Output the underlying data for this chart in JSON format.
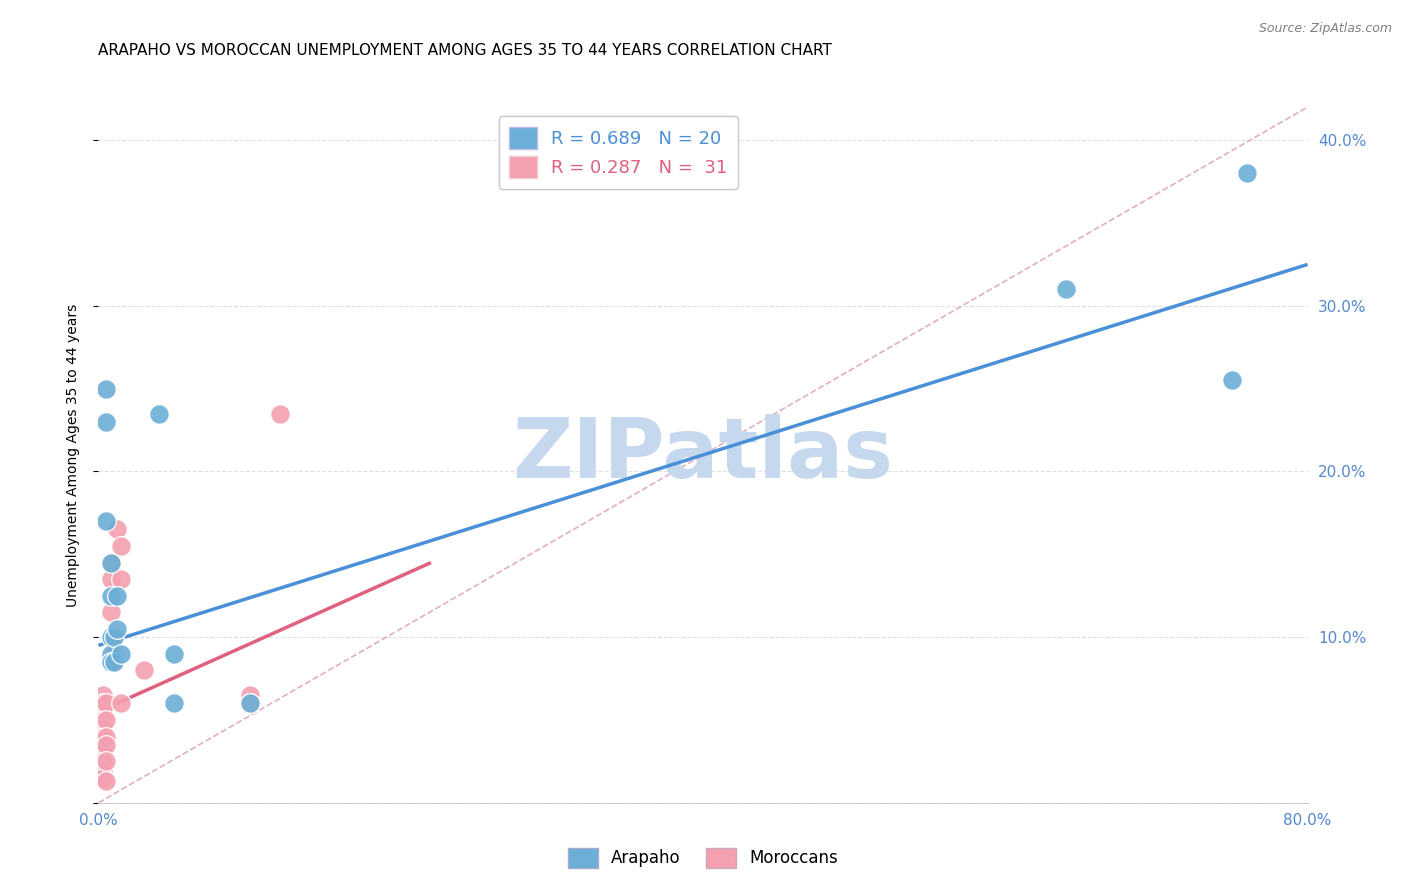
{
  "title": "ARAPAHO VS MOROCCAN UNEMPLOYMENT AMONG AGES 35 TO 44 YEARS CORRELATION CHART",
  "source": "Source: ZipAtlas.com",
  "ylabel": "Unemployment Among Ages 35 to 44 years",
  "xlim": [
    0,
    0.8
  ],
  "ylim": [
    0,
    0.42
  ],
  "watermark": "ZIPatlas",
  "arapaho_points": [
    [
      0.005,
      0.25
    ],
    [
      0.005,
      0.23
    ],
    [
      0.005,
      0.17
    ],
    [
      0.008,
      0.145
    ],
    [
      0.008,
      0.125
    ],
    [
      0.008,
      0.1
    ],
    [
      0.008,
      0.09
    ],
    [
      0.008,
      0.085
    ],
    [
      0.01,
      0.1
    ],
    [
      0.01,
      0.085
    ],
    [
      0.012,
      0.125
    ],
    [
      0.012,
      0.105
    ],
    [
      0.015,
      0.09
    ],
    [
      0.04,
      0.235
    ],
    [
      0.05,
      0.09
    ],
    [
      0.05,
      0.06
    ],
    [
      0.1,
      0.06
    ],
    [
      0.64,
      0.31
    ],
    [
      0.75,
      0.255
    ],
    [
      0.76,
      0.38
    ]
  ],
  "moroccan_points": [
    [
      0.003,
      0.065
    ],
    [
      0.003,
      0.06
    ],
    [
      0.003,
      0.055
    ],
    [
      0.003,
      0.05
    ],
    [
      0.003,
      0.045
    ],
    [
      0.003,
      0.04
    ],
    [
      0.003,
      0.035
    ],
    [
      0.003,
      0.03
    ],
    [
      0.003,
      0.025
    ],
    [
      0.003,
      0.02
    ],
    [
      0.003,
      0.015
    ],
    [
      0.005,
      0.06
    ],
    [
      0.005,
      0.05
    ],
    [
      0.005,
      0.04
    ],
    [
      0.005,
      0.035
    ],
    [
      0.005,
      0.025
    ],
    [
      0.008,
      0.145
    ],
    [
      0.008,
      0.135
    ],
    [
      0.008,
      0.115
    ],
    [
      0.01,
      0.1
    ],
    [
      0.01,
      0.09
    ],
    [
      0.01,
      0.085
    ],
    [
      0.012,
      0.165
    ],
    [
      0.015,
      0.155
    ],
    [
      0.015,
      0.06
    ],
    [
      0.03,
      0.08
    ],
    [
      0.1,
      0.065
    ],
    [
      0.1,
      0.06
    ],
    [
      0.12,
      0.235
    ],
    [
      0.015,
      0.135
    ],
    [
      0.005,
      0.013
    ]
  ],
  "arapaho_line": {
    "x": [
      0.0,
      0.8
    ],
    "y": [
      0.095,
      0.325
    ],
    "color": "#4a90d9",
    "lw": 2.5
  },
  "moroccan_line": {
    "x": [
      0.0,
      0.22
    ],
    "y": [
      0.055,
      0.145
    ],
    "color": "#e06080",
    "lw": 2.5
  },
  "diagonal_line": {
    "x": [
      0.0,
      0.8
    ],
    "y": [
      0.0,
      0.42
    ],
    "color": "#e0b0c0",
    "lw": 1.2,
    "ls": "--"
  },
  "arapaho_color": "#6baed6",
  "moroccan_color": "#f4a0b0",
  "background_color": "#ffffff",
  "grid_color": "#e0e0e0",
  "title_fontsize": 11,
  "axis_fontsize": 10,
  "tick_fontsize": 11,
  "watermark_color": "#c5d8ed",
  "watermark_fontsize": 60
}
